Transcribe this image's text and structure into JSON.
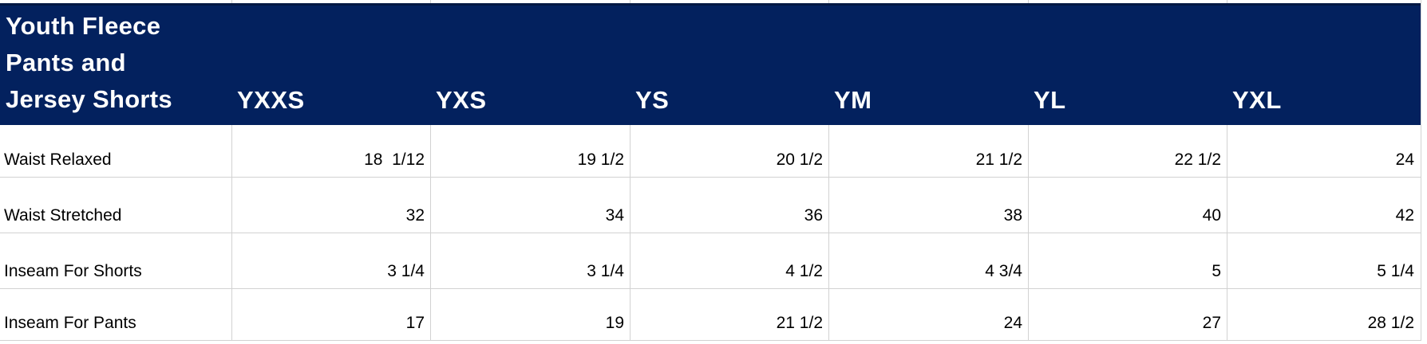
{
  "header": {
    "title_lines": [
      "Youth Fleece",
      "Pants and",
      "Jersey Shorts"
    ],
    "columns": [
      "YXXS",
      "YXS",
      "YS",
      "YM",
      "YL",
      "YXL"
    ]
  },
  "chart_data": {
    "type": "table",
    "title": "Youth Fleece Pants and Jersey Shorts",
    "columns": [
      "YXXS",
      "YXS",
      "YS",
      "YM",
      "YL",
      "YXL"
    ],
    "rows": [
      {
        "label": "Waist Relaxed",
        "values": [
          "18  1/12",
          "19 1/2",
          "20 1/2",
          "21 1/2",
          "22 1/2",
          "24"
        ]
      },
      {
        "label": "Waist Stretched",
        "values": [
          "32",
          "34",
          "36",
          "38",
          "40",
          "42"
        ]
      },
      {
        "label": "Inseam For Shorts",
        "values": [
          "3 1/4",
          "3 1/4",
          "4 1/2",
          "4 3/4",
          "5",
          "5 1/4"
        ]
      },
      {
        "label": "Inseam For Pants",
        "values": [
          "17",
          "19",
          "21 1/2",
          "24",
          "27",
          "28 1/2"
        ]
      }
    ]
  },
  "colors": {
    "header_bg": "#03215e",
    "header_top_edge": "#011843",
    "header_text": "#ffffff",
    "body_text": "#000000",
    "gridline": "#d2d2d2",
    "background": "#ffffff"
  }
}
